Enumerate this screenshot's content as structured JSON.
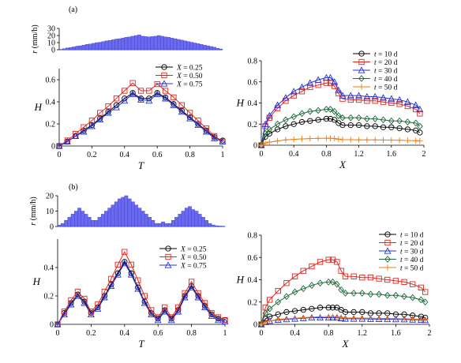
{
  "colors": {
    "X = 0.25": "#000000",
    "X = 0.50": "#e0261f",
    "X = 0.75": "#2431d9",
    "t = 10 d": "#000000",
    "t = 20 d": "#e0261f",
    "t = 30 d": "#2431d9",
    "t = 40 d": "#1f6b3a",
    "t = 50 d": "#f07a10",
    "rainfall": "#6a6aee"
  },
  "chart_data": [
    {
      "panel_label": "(a)",
      "type": "bar",
      "ylabel": "r (mm/h)",
      "yticks": [
        0,
        10,
        20,
        30
      ],
      "ylim": [
        0,
        30
      ],
      "x": [
        0,
        0.02,
        0.04,
        0.06,
        0.08,
        0.1,
        0.12,
        0.14,
        0.16,
        0.18,
        0.2,
        0.22,
        0.24,
        0.26,
        0.28,
        0.3,
        0.32,
        0.34,
        0.36,
        0.38,
        0.4,
        0.42,
        0.44,
        0.46,
        0.48,
        0.5,
        0.52,
        0.54,
        0.56,
        0.58,
        0.6,
        0.62,
        0.64,
        0.66,
        0.68,
        0.7,
        0.72,
        0.74,
        0.76,
        0.78,
        0.8,
        0.82,
        0.84,
        0.86,
        0.88,
        0.9,
        0.92,
        0.94,
        0.96,
        0.98
      ],
      "values": [
        0.5,
        1.5,
        2.5,
        3,
        4,
        5,
        5.5,
        6.5,
        7.5,
        8,
        9,
        10,
        10.5,
        11.5,
        12.5,
        13,
        14,
        15,
        15.5,
        16.5,
        17.5,
        18,
        19,
        20,
        21,
        19,
        18.5,
        18,
        18.5,
        19,
        20,
        19,
        18,
        17.5,
        16.5,
        15.5,
        14.5,
        13.5,
        12.5,
        11.5,
        10.5,
        9.5,
        8.5,
        7.5,
        6.5,
        5.5,
        4.5,
        3.5,
        2,
        1
      ],
      "xlim": [
        0,
        1
      ]
    },
    {
      "type": "line",
      "xlabel": "T",
      "ylabel": "H",
      "xlim": [
        0,
        1
      ],
      "ylim": [
        0,
        0.7
      ],
      "xticks": [
        0,
        0.2,
        0.4,
        0.6,
        0.8,
        1
      ],
      "yticks": [
        0,
        0.2,
        0.4,
        0.6
      ],
      "x": [
        0,
        0.05,
        0.1,
        0.15,
        0.2,
        0.25,
        0.3,
        0.35,
        0.4,
        0.45,
        0.5,
        0.55,
        0.6,
        0.65,
        0.7,
        0.75,
        0.8,
        0.85,
        0.9,
        0.95,
        1.0
      ],
      "legend_position": "top-right",
      "series": [
        {
          "name": "X = 0.25",
          "marker": "circle",
          "values": [
            0,
            0.04,
            0.09,
            0.14,
            0.19,
            0.25,
            0.31,
            0.37,
            0.43,
            0.48,
            0.43,
            0.43,
            0.48,
            0.44,
            0.38,
            0.32,
            0.26,
            0.2,
            0.14,
            0.08,
            0.05
          ]
        },
        {
          "name": "X = 0.50",
          "marker": "square",
          "values": [
            0,
            0.05,
            0.11,
            0.17,
            0.23,
            0.3,
            0.36,
            0.43,
            0.5,
            0.57,
            0.5,
            0.5,
            0.56,
            0.5,
            0.44,
            0.37,
            0.3,
            0.23,
            0.16,
            0.09,
            0.04
          ]
        },
        {
          "name": "X = 0.75",
          "marker": "triangle",
          "values": [
            0,
            0.04,
            0.09,
            0.13,
            0.18,
            0.24,
            0.3,
            0.35,
            0.41,
            0.47,
            0.42,
            0.41,
            0.47,
            0.43,
            0.37,
            0.31,
            0.25,
            0.19,
            0.13,
            0.07,
            0.04
          ]
        }
      ]
    },
    {
      "type": "line",
      "xlabel": "X",
      "ylabel": "H",
      "xlim": [
        0,
        2
      ],
      "ylim": [
        0,
        0.8
      ],
      "xticks": [
        0,
        0.4,
        0.8,
        1.2,
        1.6,
        2
      ],
      "yticks": [
        0,
        0.2,
        0.4,
        0.6,
        0.8
      ],
      "x": [
        0,
        0.05,
        0.1,
        0.2,
        0.3,
        0.4,
        0.5,
        0.6,
        0.7,
        0.8,
        0.85,
        0.9,
        0.95,
        1.0,
        1.1,
        1.2,
        1.3,
        1.4,
        1.5,
        1.6,
        1.7,
        1.8,
        1.9,
        1.95
      ],
      "legend_position": "top-right",
      "series": [
        {
          "name": "t = 10 d",
          "marker": "circle",
          "values": [
            0,
            0.08,
            0.11,
            0.15,
            0.18,
            0.2,
            0.22,
            0.23,
            0.24,
            0.25,
            0.25,
            0.24,
            0.21,
            0.19,
            0.19,
            0.19,
            0.18,
            0.18,
            0.17,
            0.17,
            0.16,
            0.15,
            0.14,
            0.12
          ]
        },
        {
          "name": "t = 20 d",
          "marker": "square",
          "values": [
            0,
            0.18,
            0.26,
            0.35,
            0.42,
            0.47,
            0.51,
            0.55,
            0.57,
            0.59,
            0.59,
            0.56,
            0.49,
            0.44,
            0.43,
            0.43,
            0.42,
            0.42,
            0.41,
            0.4,
            0.39,
            0.37,
            0.34,
            0.3
          ]
        },
        {
          "name": "t = 30 d",
          "marker": "triangle",
          "values": [
            0,
            0.2,
            0.28,
            0.38,
            0.45,
            0.51,
            0.55,
            0.59,
            0.62,
            0.64,
            0.64,
            0.6,
            0.52,
            0.47,
            0.47,
            0.47,
            0.46,
            0.46,
            0.45,
            0.44,
            0.43,
            0.41,
            0.38,
            0.34
          ]
        },
        {
          "name": "t = 40 d",
          "marker": "diamond",
          "values": [
            0,
            0.11,
            0.15,
            0.2,
            0.24,
            0.27,
            0.3,
            0.32,
            0.33,
            0.34,
            0.34,
            0.32,
            0.28,
            0.26,
            0.26,
            0.26,
            0.25,
            0.25,
            0.24,
            0.23,
            0.23,
            0.22,
            0.21,
            0.18
          ]
        },
        {
          "name": "t = 50 d",
          "marker": "plus",
          "values": [
            0,
            0.02,
            0.03,
            0.04,
            0.05,
            0.055,
            0.06,
            0.063,
            0.065,
            0.066,
            0.066,
            0.063,
            0.057,
            0.053,
            0.052,
            0.051,
            0.05,
            0.05,
            0.049,
            0.048,
            0.047,
            0.045,
            0.043,
            0.04
          ]
        }
      ]
    },
    {
      "panel_label": "(b)",
      "type": "bar",
      "ylabel": "r (mm/h)",
      "yticks": [
        0,
        10,
        20
      ],
      "ylim": [
        0,
        20
      ],
      "x": [
        0,
        0.02,
        0.04,
        0.06,
        0.08,
        0.1,
        0.12,
        0.14,
        0.16,
        0.18,
        0.2,
        0.22,
        0.24,
        0.26,
        0.28,
        0.3,
        0.32,
        0.34,
        0.36,
        0.38,
        0.4,
        0.42,
        0.44,
        0.46,
        0.48,
        0.5,
        0.52,
        0.54,
        0.56,
        0.58,
        0.6,
        0.62,
        0.64,
        0.66,
        0.68,
        0.7,
        0.72,
        0.74,
        0.76,
        0.78,
        0.8,
        0.82,
        0.84,
        0.86,
        0.88,
        0.9,
        0.92,
        0.94,
        0.96,
        0.98
      ],
      "values": [
        1,
        2,
        4,
        6,
        8,
        10,
        12,
        10,
        8,
        6,
        4,
        4,
        6,
        8,
        10,
        12,
        14,
        16,
        18,
        19,
        20,
        18,
        16,
        14,
        12,
        10,
        8,
        6,
        4,
        2,
        2,
        3,
        2,
        2,
        4,
        6,
        8,
        10,
        12,
        13,
        11,
        10,
        8,
        6,
        4,
        2,
        1,
        0.5,
        0.3,
        0.2
      ],
      "xlim": [
        0,
        1
      ]
    },
    {
      "type": "line",
      "xlabel": "T",
      "ylabel": "H",
      "xlim": [
        0,
        1
      ],
      "ylim": [
        0,
        0.6
      ],
      "xticks": [
        0,
        0.2,
        0.4,
        0.6,
        0.8,
        1
      ],
      "yticks": [
        0,
        0.2,
        0.4
      ],
      "x": [
        0,
        0.04,
        0.08,
        0.12,
        0.16,
        0.2,
        0.24,
        0.28,
        0.32,
        0.36,
        0.4,
        0.44,
        0.48,
        0.52,
        0.56,
        0.6,
        0.64,
        0.68,
        0.72,
        0.76,
        0.8,
        0.84,
        0.88,
        0.92,
        0.96,
        1.0
      ],
      "legend_position": "top-right",
      "series": [
        {
          "name": "X = 0.25",
          "marker": "circle",
          "values": [
            0,
            0.08,
            0.15,
            0.21,
            0.16,
            0.08,
            0.12,
            0.2,
            0.28,
            0.36,
            0.44,
            0.36,
            0.26,
            0.16,
            0.08,
            0.04,
            0.1,
            0.04,
            0.1,
            0.2,
            0.27,
            0.2,
            0.13,
            0.07,
            0.04,
            0.03
          ]
        },
        {
          "name": "X = 0.50",
          "marker": "square",
          "values": [
            0,
            0.09,
            0.17,
            0.23,
            0.18,
            0.09,
            0.14,
            0.23,
            0.32,
            0.42,
            0.51,
            0.42,
            0.31,
            0.2,
            0.1,
            0.05,
            0.12,
            0.05,
            0.12,
            0.22,
            0.3,
            0.22,
            0.15,
            0.08,
            0.05,
            0.03
          ]
        },
        {
          "name": "X = 0.75",
          "marker": "triangle",
          "values": [
            0,
            0.07,
            0.14,
            0.2,
            0.15,
            0.07,
            0.11,
            0.19,
            0.27,
            0.35,
            0.43,
            0.35,
            0.25,
            0.15,
            0.07,
            0.03,
            0.09,
            0.03,
            0.09,
            0.19,
            0.26,
            0.19,
            0.12,
            0.06,
            0.03,
            0.02
          ]
        }
      ]
    },
    {
      "type": "line",
      "xlabel": "X",
      "ylabel": "H",
      "xlim": [
        0,
        2
      ],
      "ylim": [
        0,
        0.8
      ],
      "xticks": [
        0,
        0.4,
        0.8,
        1.2,
        1.6,
        2
      ],
      "yticks": [
        0,
        0.2,
        0.4,
        0.6,
        0.8
      ],
      "x": [
        0,
        0.05,
        0.1,
        0.2,
        0.3,
        0.4,
        0.5,
        0.6,
        0.7,
        0.8,
        0.85,
        0.9,
        0.95,
        1.0,
        1.1,
        1.2,
        1.3,
        1.4,
        1.5,
        1.6,
        1.7,
        1.8,
        1.9,
        1.95
      ],
      "legend_position": "top-right",
      "series": [
        {
          "name": "t = 10 d",
          "marker": "circle",
          "values": [
            0,
            0.05,
            0.07,
            0.09,
            0.11,
            0.12,
            0.13,
            0.14,
            0.15,
            0.15,
            0.15,
            0.15,
            0.13,
            0.11,
            0.11,
            0.11,
            0.1,
            0.1,
            0.1,
            0.09,
            0.09,
            0.08,
            0.07,
            0.06
          ]
        },
        {
          "name": "t = 20 d",
          "marker": "square",
          "values": [
            0,
            0.15,
            0.22,
            0.3,
            0.37,
            0.43,
            0.48,
            0.52,
            0.56,
            0.58,
            0.58,
            0.56,
            0.48,
            0.43,
            0.43,
            0.42,
            0.42,
            0.41,
            0.4,
            0.39,
            0.38,
            0.36,
            0.33,
            0.29
          ]
        },
        {
          "name": "t = 30 d",
          "marker": "triangle",
          "values": [
            0,
            0.02,
            0.03,
            0.04,
            0.045,
            0.05,
            0.055,
            0.06,
            0.06,
            0.06,
            0.06,
            0.06,
            0.055,
            0.05,
            0.05,
            0.05,
            0.048,
            0.047,
            0.046,
            0.045,
            0.044,
            0.042,
            0.04,
            0.038
          ]
        },
        {
          "name": "t = 40 d",
          "marker": "diamond",
          "values": [
            0,
            0.1,
            0.14,
            0.2,
            0.25,
            0.29,
            0.32,
            0.35,
            0.37,
            0.38,
            0.38,
            0.36,
            0.31,
            0.28,
            0.28,
            0.28,
            0.27,
            0.27,
            0.26,
            0.26,
            0.25,
            0.24,
            0.22,
            0.2
          ]
        },
        {
          "name": "t = 50 d",
          "marker": "plus",
          "values": [
            0,
            0.02,
            0.03,
            0.045,
            0.05,
            0.055,
            0.06,
            0.065,
            0.068,
            0.07,
            0.07,
            0.068,
            0.062,
            0.058,
            0.057,
            0.056,
            0.055,
            0.054,
            0.053,
            0.052,
            0.05,
            0.048,
            0.046,
            0.043
          ]
        }
      ]
    }
  ]
}
